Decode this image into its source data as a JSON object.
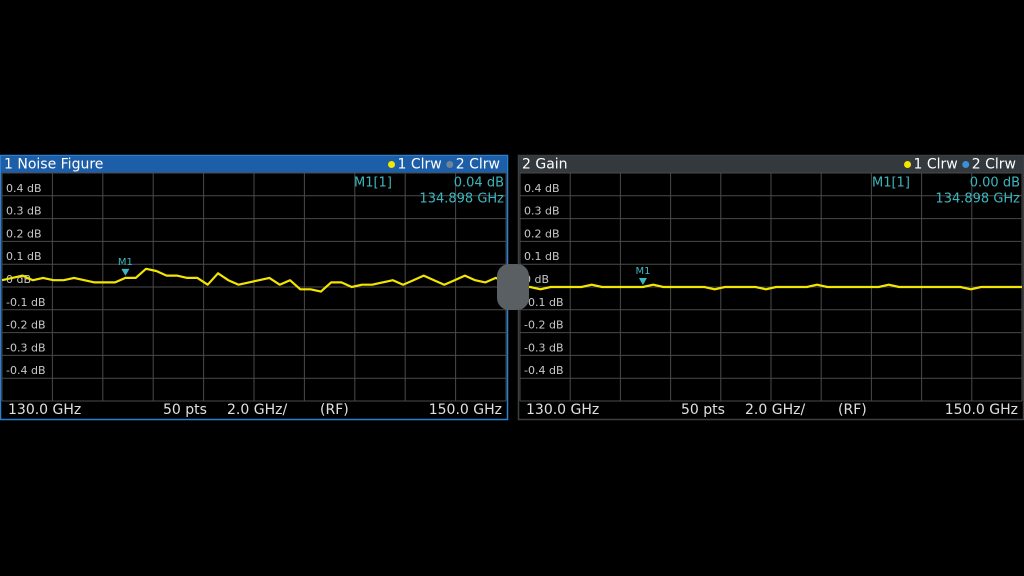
{
  "chart_data": [
    {
      "type": "line",
      "title": "1 Noise Figure",
      "traces": [
        {
          "label": "1 Clrw",
          "color": "#f2e600"
        },
        {
          "label": "2 Clrw",
          "color": "#6f8499"
        }
      ],
      "values": [
        0.03,
        0.04,
        0.05,
        0.03,
        0.04,
        0.03,
        0.03,
        0.04,
        0.03,
        0.02,
        0.02,
        0.02,
        0.04,
        0.04,
        0.08,
        0.07,
        0.05,
        0.05,
        0.04,
        0.04,
        0.01,
        0.06,
        0.03,
        0.01,
        0.02,
        0.03,
        0.04,
        0.01,
        0.03,
        -0.01,
        -0.01,
        -0.02,
        0.02,
        0.02,
        0.0,
        0.01,
        0.01,
        0.02,
        0.03,
        0.01,
        0.03,
        0.05,
        0.03,
        0.01,
        0.03,
        0.05,
        0.03,
        0.02,
        0.04,
        0.02
      ],
      "ylim": [
        -0.5,
        0.5
      ],
      "yticks": [
        {
          "value": 0.4,
          "label": "0.4 dB"
        },
        {
          "value": 0.3,
          "label": "0.3 dB"
        },
        {
          "value": 0.2,
          "label": "0.2 dB"
        },
        {
          "value": 0.1,
          "label": "0.1 dB"
        },
        {
          "value": 0,
          "label": "0 dB"
        },
        {
          "value": -0.1,
          "label": "-0.1 dB"
        },
        {
          "value": -0.2,
          "label": "-0.2 dB"
        },
        {
          "value": -0.3,
          "label": "-0.3 dB"
        },
        {
          "value": -0.4,
          "label": "-0.4 dB"
        }
      ],
      "xlim": [
        130,
        150
      ],
      "xticks": [
        {
          "value": 130,
          "label": "130.0 GHz"
        },
        {
          "value": 150,
          "label": "150.0 GHz"
        }
      ],
      "points_label": "50 pts",
      "span_label": "2.0 GHz/",
      "mode_label": "(RF)",
      "marker": {
        "name": "M1",
        "readout": "M1[1]",
        "x": 134.898,
        "x_label": "134.898 GHz",
        "y": 0.04,
        "y_label": "0.04 dB"
      },
      "active": true
    },
    {
      "type": "line",
      "title": "2 Gain",
      "traces": [
        {
          "label": "1 Clrw",
          "color": "#f2e600"
        },
        {
          "label": "2 Clrw",
          "color": "#3a8fd8"
        }
      ],
      "values": [
        0.0,
        0.0,
        -0.01,
        0.0,
        0.0,
        0.0,
        0.0,
        0.01,
        0.0,
        0.0,
        0.0,
        0.0,
        0.0,
        0.01,
        0.0,
        0.0,
        0.0,
        0.0,
        0.0,
        -0.01,
        0.0,
        0.0,
        0.0,
        0.0,
        -0.01,
        0.0,
        0.0,
        0.0,
        0.0,
        0.01,
        0.0,
        0.0,
        0.0,
        0.0,
        0.0,
        0.0,
        0.01,
        0.0,
        0.0,
        0.0,
        0.0,
        0.0,
        0.0,
        0.0,
        -0.01,
        0.0,
        0.0,
        0.0,
        0.0,
        0.0
      ],
      "ylim": [
        -0.5,
        0.5
      ],
      "yticks": [
        {
          "value": 0.4,
          "label": "0.4 dB"
        },
        {
          "value": 0.3,
          "label": "0.3 dB"
        },
        {
          "value": 0.2,
          "label": "0.2 dB"
        },
        {
          "value": 0.1,
          "label": "0.1 dB"
        },
        {
          "value": 0,
          "label": "0 dB"
        },
        {
          "value": -0.1,
          "label": "-0.1 dB"
        },
        {
          "value": -0.2,
          "label": "-0.2 dB"
        },
        {
          "value": -0.3,
          "label": "-0.3 dB"
        },
        {
          "value": -0.4,
          "label": "-0.4 dB"
        }
      ],
      "xlim": [
        130,
        150
      ],
      "xticks": [
        {
          "value": 130,
          "label": "130.0 GHz"
        },
        {
          "value": 150,
          "label": "150.0 GHz"
        }
      ],
      "points_label": "50 pts",
      "span_label": "2.0 GHz/",
      "mode_label": "(RF)",
      "marker": {
        "name": "M1",
        "readout": "M1[1]",
        "x": 134.898,
        "x_label": "134.898 GHz",
        "y": 0.0,
        "y_label": "0.00 dB"
      },
      "active": false
    }
  ]
}
